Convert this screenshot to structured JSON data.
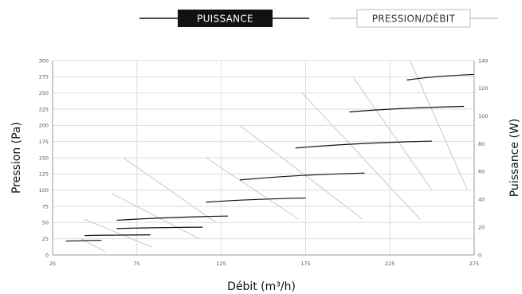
{
  "legend": {
    "power_label": "PUISSANCE",
    "pressure_label": "PRESSION/DÉBIT"
  },
  "colors": {
    "power_curve": "#111111",
    "pressure_curve": "#c8c8c8",
    "grid": "#dedede",
    "legend_box_fill": "#111111"
  },
  "chart_data": {
    "type": "line",
    "xlabel": "Débit (m³/h)",
    "ylabel": "Pression (Pa)",
    "y2label": "Puissance (W)",
    "xlim": [
      25,
      275
    ],
    "ylim": [
      0,
      300
    ],
    "y2lim": [
      0,
      140
    ],
    "x_ticks": [
      25,
      75,
      125,
      175,
      225,
      275
    ],
    "y_ticks": [
      0,
      25,
      50,
      75,
      100,
      125,
      150,
      175,
      200,
      225,
      250,
      275,
      300
    ],
    "y2_ticks": [
      0,
      20,
      40,
      60,
      80,
      100,
      120,
      140
    ],
    "grid": true,
    "legend_position": "top",
    "series": [
      {
        "name": "PUISSANCE",
        "axis": "right",
        "curves": [
          [
            [
              33,
              10
            ],
            [
              54,
              10.5
            ]
          ],
          [
            [
              44,
              14
            ],
            [
              83,
              14.5
            ]
          ],
          [
            [
              63,
              19
            ],
            [
              114,
              20
            ]
          ],
          [
            [
              63,
              25
            ],
            [
              129,
              28
            ]
          ],
          [
            [
              116,
              38
            ],
            [
              175,
              41
            ]
          ],
          [
            [
              136,
              54
            ],
            [
              210,
              59
            ]
          ],
          [
            [
              169,
              77
            ],
            [
              250,
              82
            ]
          ],
          [
            [
              201,
              103
            ],
            [
              269,
              107
            ]
          ],
          [
            [
              235,
              126
            ],
            [
              275,
              130
            ]
          ]
        ]
      },
      {
        "name": "PRESSION/DÉBIT",
        "axis": "left",
        "curves": [
          [
            [
              42,
              25
            ],
            [
              56,
              5
            ]
          ],
          [
            [
              44,
              55
            ],
            [
              84,
              12
            ]
          ],
          [
            [
              60,
              95
            ],
            [
              112,
              25
            ]
          ],
          [
            [
              67,
              150
            ],
            [
              122,
              50
            ]
          ],
          [
            [
              116,
              150
            ],
            [
              171,
              55
            ]
          ],
          [
            [
              136,
              200
            ],
            [
              209,
              55
            ]
          ],
          [
            [
              173,
              250
            ],
            [
              243,
              55
            ]
          ],
          [
            [
              203,
              275
            ],
            [
              250,
              100
            ]
          ],
          [
            [
              237,
              300
            ],
            [
              271,
              100
            ]
          ]
        ]
      }
    ]
  }
}
